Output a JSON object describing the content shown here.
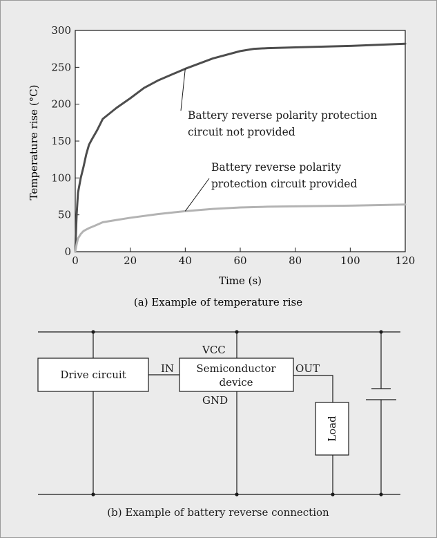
{
  "chart_data": {
    "type": "line",
    "caption": "(a) Example of temperature rise",
    "xlabel": "Time (s)",
    "ylabel": "Temperature rise (°C)",
    "xlim": [
      0,
      120
    ],
    "ylim": [
      0,
      300
    ],
    "xticks": [
      0,
      20,
      40,
      60,
      80,
      100,
      120
    ],
    "yticks": [
      0,
      50,
      100,
      150,
      200,
      250,
      300
    ],
    "grid": false,
    "series": [
      {
        "name": "Battery reverse polarity protection circuit not provided",
        "label_lines": [
          "Battery reverse polarity protection",
          "circuit not provided"
        ],
        "color": "#4d4d4d",
        "x": [
          0,
          0.5,
          1,
          2,
          3,
          4,
          5,
          6,
          8,
          10,
          15,
          20,
          25,
          30,
          40,
          50,
          60,
          65,
          70,
          80,
          100,
          120
        ],
        "y": [
          0,
          50,
          80,
          100,
          115,
          132,
          145,
          152,
          165,
          180,
          195,
          208,
          222,
          232,
          248,
          262,
          272,
          275,
          276,
          277,
          279,
          282
        ]
      },
      {
        "name": "Battery reverse polarity protection circuit provided",
        "label_lines": [
          "Battery reverse polarity",
          "protection circuit provided"
        ],
        "color": "#b3b3b3",
        "x": [
          0,
          0.5,
          1,
          2,
          3,
          5,
          7,
          10,
          15,
          20,
          30,
          40,
          50,
          60,
          70,
          80,
          100,
          120
        ],
        "y": [
          0,
          10,
          18,
          24,
          28,
          32,
          35,
          40,
          43,
          46,
          51,
          55,
          58,
          60,
          61,
          61.5,
          62.5,
          64
        ]
      }
    ]
  },
  "diagram": {
    "caption": "(b) Example of battery reverse connection",
    "drive_circuit_label": "Drive circuit",
    "in_label": "IN",
    "vcc_label": "VCC",
    "device_label_line1": "Semiconductor",
    "device_label_line2": "device",
    "out_label": "OUT",
    "gnd_label": "GND",
    "load_label": "Load"
  }
}
